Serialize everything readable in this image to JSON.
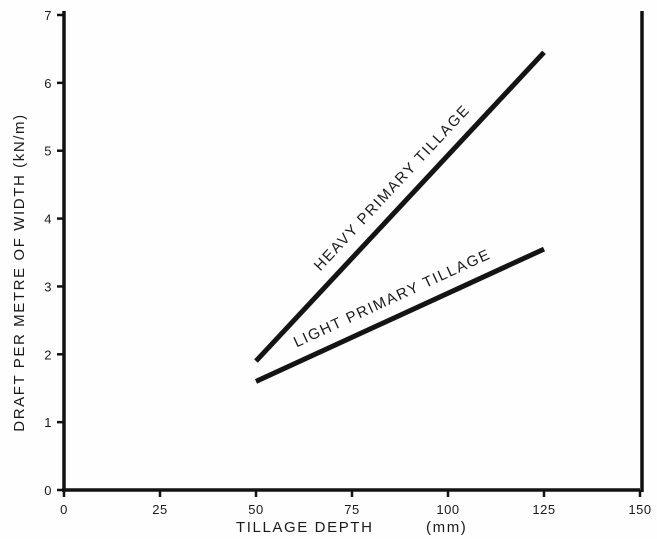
{
  "chart_data": {
    "type": "line",
    "title": "",
    "xlabel": "TILLAGE DEPTH",
    "xlabel_unit": "(mm)",
    "ylabel": "DRAFT PER METRE OF WIDTH  (kN/m)",
    "xlim": [
      0,
      150
    ],
    "ylim": [
      0,
      7
    ],
    "x_ticks": [
      0,
      25,
      50,
      75,
      100,
      125,
      150
    ],
    "x_tick_labels": [
      "0",
      "25",
      "50",
      "75",
      "100",
      "125",
      "150"
    ],
    "y_ticks": [
      0,
      1,
      2,
      3,
      4,
      5,
      6,
      7
    ],
    "y_tick_labels": [
      "0",
      "1",
      "2",
      "3",
      "4",
      "5",
      "6",
      "7"
    ],
    "grid": false,
    "legend": "none",
    "series": [
      {
        "name": "HEAVY PRIMARY TILLAGE",
        "x": [
          50,
          125
        ],
        "y": [
          1.9,
          6.45
        ]
      },
      {
        "name": "LIGHT PRIMARY TILLAGE",
        "x": [
          50,
          125
        ],
        "y": [
          1.6,
          3.55
        ]
      }
    ],
    "colors": {
      "line": "#141414",
      "axis": "#111111",
      "text": "#1a1a1a"
    }
  }
}
